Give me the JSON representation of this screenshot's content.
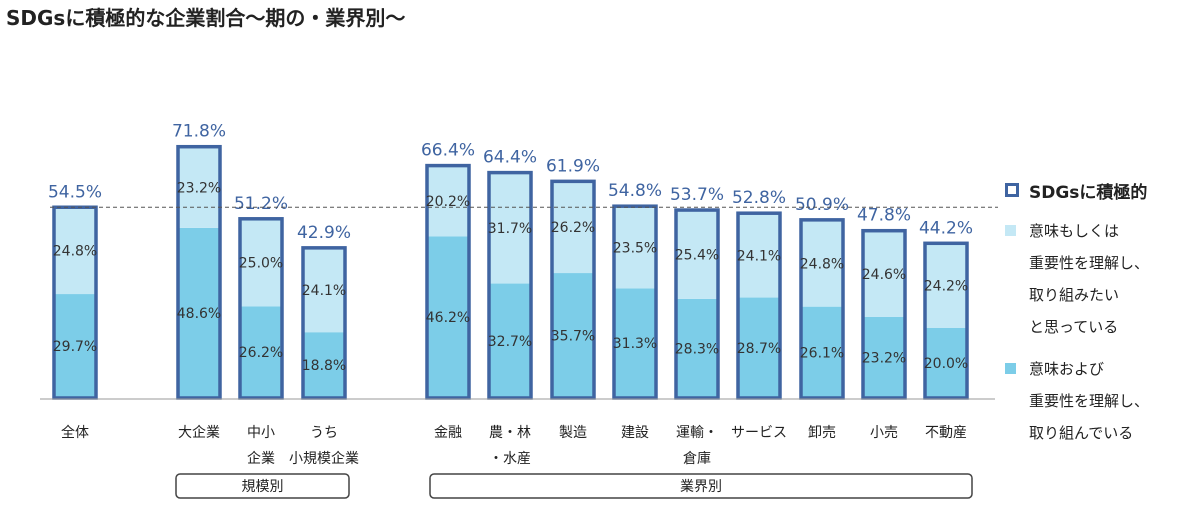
{
  "title": "SDGsに積極的な企業割合〜期の・業界別〜",
  "legend": {
    "total": "SDGsに積極的",
    "light": "意味もしくは\n重要性を理解し、\n取り組みたい\nと思っている",
    "dark": "意味および\n重要性を理解し、\n取り組んでいる"
  },
  "groups": [
    {
      "label": "規模別"
    },
    {
      "label": "業界別"
    }
  ],
  "colors": {
    "frame": "#3f64a1",
    "light": "#c4e8f5",
    "dark": "#7ccde8",
    "total_label": "#3f64a1",
    "segment_label": "#333333"
  },
  "chart_data": {
    "type": "bar",
    "stacked": true,
    "categories": [
      "全体",
      "大企業",
      "中小企業",
      "うち小規模企業",
      "金融",
      "農・林・水産",
      "製造",
      "建設",
      "運輸・倉庫",
      "サービス",
      "卸売",
      "小売",
      "不動産"
    ],
    "category_lines": [
      [
        "全体"
      ],
      [
        "大企業"
      ],
      [
        "中小",
        "企業"
      ],
      [
        "うち",
        "小規模企業"
      ],
      [
        "金融"
      ],
      [
        "農・林",
        "・水産"
      ],
      [
        "製造"
      ],
      [
        "建設"
      ],
      [
        "運輸・",
        "倉庫"
      ],
      [
        "サービス"
      ],
      [
        "卸売"
      ],
      [
        "小売"
      ],
      [
        "不動産"
      ]
    ],
    "series": [
      {
        "name": "意味および重要性を理解し、取り組んでいる",
        "values": [
          29.7,
          48.6,
          26.2,
          18.8,
          46.2,
          32.7,
          35.7,
          31.3,
          28.3,
          28.7,
          26.1,
          23.2,
          20.0
        ]
      },
      {
        "name": "意味もしくは重要性を理解し、取り組みたいと思っている",
        "values": [
          24.8,
          23.2,
          25.0,
          24.1,
          20.2,
          31.7,
          26.2,
          23.5,
          25.4,
          24.1,
          24.8,
          24.6,
          24.2
        ]
      }
    ],
    "totals_name": "SDGsに積極的",
    "totals": [
      54.5,
      71.8,
      51.2,
      42.9,
      66.4,
      64.4,
      61.9,
      54.8,
      53.7,
      52.8,
      50.9,
      47.8,
      44.2
    ],
    "reference_line": 54.5,
    "ylim": [
      0,
      80
    ],
    "axis_visible": false,
    "legend_position": "right"
  }
}
